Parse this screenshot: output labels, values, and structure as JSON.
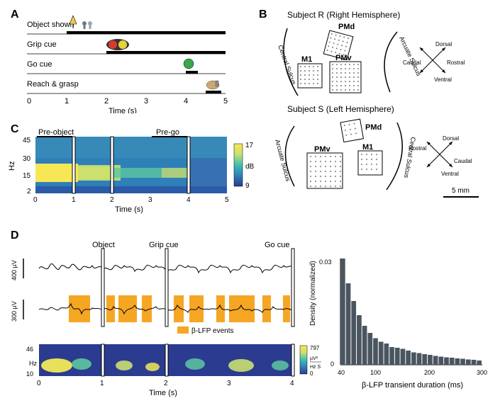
{
  "panelA": {
    "label": "A",
    "rows": [
      {
        "name": "Object shown",
        "bar_start": 1.0,
        "bar_end": 5.0
      },
      {
        "name": "Grip cue",
        "bar_start": 2.0,
        "bar_end": 5.0
      },
      {
        "name": "Go cue",
        "bar_start": 4.0,
        "bar_end": 4.3
      },
      {
        "name": "Reach & grasp",
        "bar_start": 4.5,
        "bar_end": 4.9
      }
    ],
    "x_label": "Time (s)",
    "x_ticks": [
      0,
      1,
      2,
      3,
      4,
      5
    ],
    "icons": {
      "lamp_color": "#f3c94b",
      "object_color": "#6b7a8f",
      "grip_red": "#d83a2f",
      "grip_yellow": "#e8d23a",
      "go_green": "#3aa84a",
      "hand_color": "#c9a978"
    }
  },
  "panelB": {
    "label": "B",
    "subjectR_title": "Subject R (Right Hemisphere)",
    "subjectS_title": "Subject S (Left Hemisphere)",
    "regions": [
      "PMd",
      "M1",
      "PMv"
    ],
    "sulcus1": "Central Sulcus",
    "sulcus2": "Arcuate Sulcus",
    "compass": [
      "Dorsal",
      "Rostral",
      "Caudal",
      "Ventral"
    ],
    "scale_label": "5 mm",
    "array_color": "#7a7a7a",
    "line_color": "#000000"
  },
  "panelC": {
    "label": "C",
    "epoch1": "Pre-object",
    "epoch2": "Pre-go",
    "y_label": "Hz",
    "y_ticks": [
      2,
      15,
      30,
      45
    ],
    "x_label": "Time (s)",
    "x_ticks": [
      0,
      1,
      2,
      3,
      4,
      5
    ],
    "cbar_label": "dB",
    "cbar_ticks": [
      9,
      17
    ],
    "cmap_colors": [
      "#2b3b8f",
      "#2f6fb0",
      "#3aa0b8",
      "#5cc8a0",
      "#c8e070",
      "#f2e857"
    ],
    "vlines": [
      1,
      2,
      4
    ]
  },
  "panelD": {
    "label": "D",
    "events": [
      "Object",
      "Grip cue",
      "Go cue"
    ],
    "event_times": [
      1,
      2,
      4
    ],
    "scale1": "400 µV",
    "scale2": "300 µV",
    "legend": "β-LFP events",
    "legend_color": "#f5a623",
    "x_label": "Time (s)",
    "x_ticks": [
      0,
      1,
      2,
      3,
      4
    ],
    "spec_y_ticks": [
      10,
      46
    ],
    "spec_y_label": "Hz",
    "spec_cbar_ticks": [
      0,
      797
    ],
    "spec_cbar_unit_top": "µV²",
    "spec_cbar_unit_bot": "Hz S",
    "hist_x_label": "β-LFP transient duration (ms)",
    "hist_y_label": "Density (normalized)",
    "hist_x_ticks": [
      40,
      100,
      200,
      300
    ],
    "hist_y_ticks": [
      0,
      0.03
    ],
    "hist_values": [
      0.03,
      0.023,
      0.018,
      0.014,
      0.011,
      0.009,
      0.0075,
      0.0065,
      0.006,
      0.005,
      0.0048,
      0.0045,
      0.004,
      0.0035,
      0.0033,
      0.003,
      0.0028,
      0.0025,
      0.0023,
      0.0021,
      0.002,
      0.0018,
      0.0017,
      0.0015,
      0.0014,
      0.0012
    ],
    "hist_color": "#4a5560",
    "trace_color": "#000000"
  }
}
